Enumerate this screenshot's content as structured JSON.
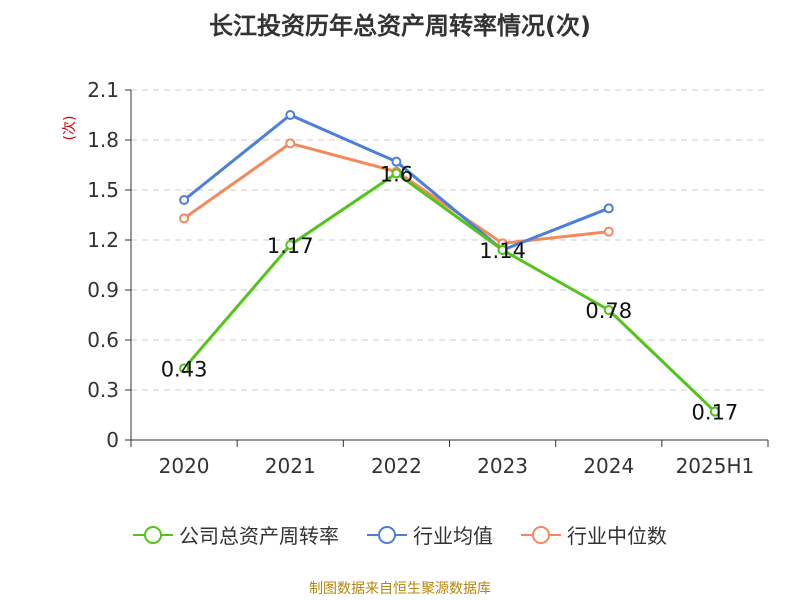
{
  "title": "长江投资历年总资产周转率情况(次)",
  "source": "制图数据来自恒生聚源数据库",
  "chart_data": {
    "type": "line",
    "title": "长江投资历年总资产周转率情况(次)",
    "ylabel": "(次)",
    "xlabel": "",
    "categories": [
      "2020",
      "2021",
      "2022",
      "2023",
      "2024",
      "2025H1"
    ],
    "ylim": [
      0,
      2.1
    ],
    "yticks": [
      "0",
      "0.3",
      "0.6",
      "0.9",
      "1.2",
      "1.5",
      "1.8",
      "2.1"
    ],
    "grid": true,
    "legend_position": "bottom",
    "series": [
      {
        "name": "公司总资产周转率",
        "color": "#52c41a",
        "values": [
          0.43,
          1.17,
          1.6,
          1.14,
          0.78,
          0.17
        ],
        "labels": [
          "0.43",
          "1.17",
          "1.6",
          "1.14",
          "0.78",
          "0.17"
        ]
      },
      {
        "name": "行业均值",
        "color": "#4a7fdb",
        "values": [
          1.44,
          1.95,
          1.67,
          1.14,
          1.39,
          null
        ],
        "labels": []
      },
      {
        "name": "行业中位数",
        "color": "#f5895a",
        "values": [
          1.33,
          1.78,
          1.61,
          1.18,
          1.25,
          null
        ],
        "labels": []
      }
    ]
  }
}
